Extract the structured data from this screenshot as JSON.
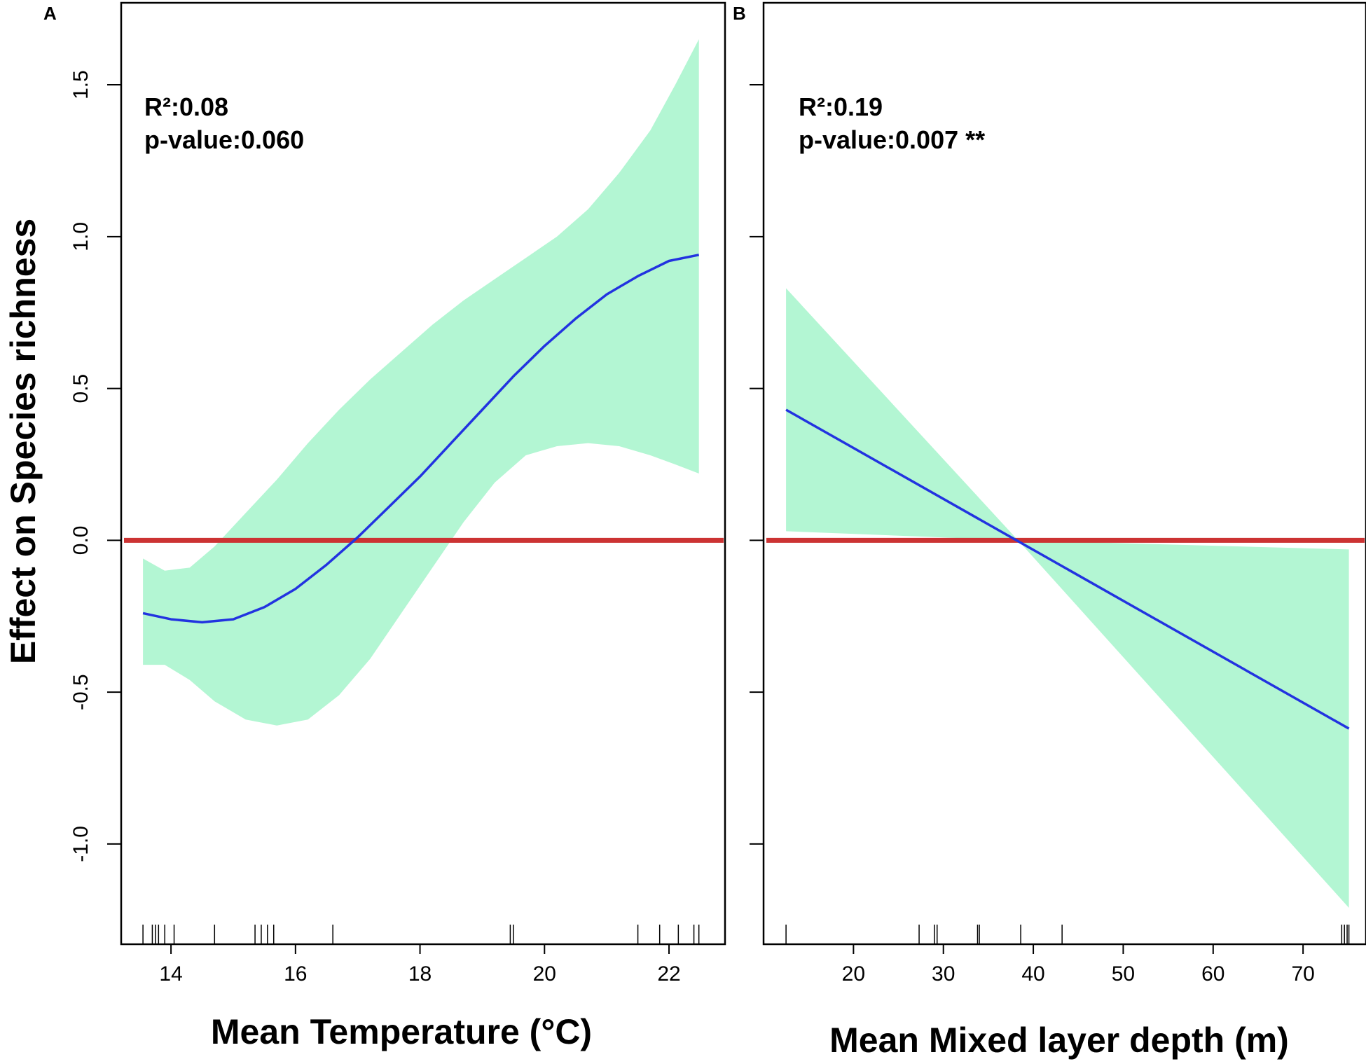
{
  "ylabel": "Effect on Species richness",
  "colors": {
    "band": "#b3f6d3",
    "curve": "#2233e0",
    "zero_line": "#cc3333",
    "axis": "#000000"
  },
  "chart_data": [
    {
      "type": "line",
      "panel": "A",
      "title": "",
      "xlabel": "Mean Temperature (°C)",
      "ylabel": "Effect on Species richness",
      "xlim": [
        13.2,
        22.9
      ],
      "ylim": [
        -1.33,
        1.77
      ],
      "xticks": [
        14,
        16,
        18,
        20,
        22
      ],
      "xtick_labels": [
        "14",
        "16",
        "18",
        "20",
        "22"
      ],
      "yticks": [
        -1.0,
        -0.5,
        0.0,
        0.5,
        1.0,
        1.5
      ],
      "ytick_labels": [
        "-1.0",
        "-0.5",
        "0.0",
        "0.5",
        "1.0",
        "1.5"
      ],
      "stats": {
        "r2": "R²:0.08",
        "pvalue": "p-value:0.060"
      },
      "reference_line_y": 0,
      "series": [
        {
          "name": "fit",
          "x": [
            13.55,
            14.0,
            14.5,
            15.0,
            15.5,
            16.0,
            16.5,
            17.0,
            17.5,
            18.0,
            18.5,
            19.0,
            19.5,
            20.0,
            20.5,
            21.0,
            21.5,
            22.0,
            22.48
          ],
          "y": [
            -0.24,
            -0.26,
            -0.27,
            -0.26,
            -0.22,
            -0.16,
            -0.08,
            0.01,
            0.11,
            0.21,
            0.32,
            0.43,
            0.54,
            0.64,
            0.73,
            0.81,
            0.87,
            0.92,
            0.94
          ]
        },
        {
          "name": "ci_upper",
          "x": [
            13.55,
            13.9,
            14.3,
            14.7,
            15.2,
            15.7,
            16.2,
            16.7,
            17.2,
            17.7,
            18.2,
            18.7,
            19.2,
            19.7,
            20.2,
            20.7,
            21.2,
            21.7,
            22.1,
            22.48
          ],
          "y": [
            -0.06,
            -0.1,
            -0.09,
            -0.02,
            0.09,
            0.2,
            0.32,
            0.43,
            0.53,
            0.62,
            0.71,
            0.79,
            0.86,
            0.93,
            1.0,
            1.09,
            1.21,
            1.35,
            1.5,
            1.65
          ]
        },
        {
          "name": "ci_lower",
          "x": [
            13.55,
            13.9,
            14.3,
            14.7,
            15.2,
            15.7,
            16.2,
            16.7,
            17.2,
            17.7,
            18.2,
            18.7,
            19.2,
            19.7,
            20.2,
            20.7,
            21.2,
            21.7,
            22.1,
            22.48
          ],
          "y": [
            -0.41,
            -0.41,
            -0.46,
            -0.53,
            -0.59,
            -0.61,
            -0.59,
            -0.51,
            -0.39,
            -0.24,
            -0.09,
            0.06,
            0.19,
            0.28,
            0.31,
            0.32,
            0.31,
            0.28,
            0.25,
            0.22
          ]
        }
      ],
      "rug": [
        13.55,
        13.7,
        13.75,
        13.8,
        13.9,
        14.05,
        14.7,
        15.35,
        15.45,
        15.55,
        15.65,
        16.6,
        19.45,
        19.5,
        21.5,
        21.85,
        22.15,
        22.4,
        22.48
      ]
    },
    {
      "type": "line",
      "panel": "B",
      "title": "",
      "xlabel": "Mean Mixed layer depth (m)",
      "ylabel": "",
      "xlim": [
        10,
        77
      ],
      "ylim": [
        -1.33,
        1.77
      ],
      "xticks": [
        20,
        30,
        40,
        50,
        60,
        70
      ],
      "xtick_labels": [
        "20",
        "30",
        "40",
        "50",
        "60",
        "70"
      ],
      "yticks": [
        -1.0,
        -0.5,
        0.0,
        0.5,
        1.0,
        1.5
      ],
      "ytick_labels": [],
      "stats": {
        "r2": "R²:0.19",
        "pvalue": "p-value:0.007 **"
      },
      "reference_line_y": 0,
      "series": [
        {
          "name": "fit",
          "x": [
            12.5,
            75.1
          ],
          "y": [
            0.43,
            -0.62
          ]
        },
        {
          "name": "ci_upper",
          "x": [
            12.5,
            38.3,
            75.1
          ],
          "y": [
            0.83,
            0.0,
            -0.03
          ]
        },
        {
          "name": "ci_lower",
          "x": [
            12.5,
            38.3,
            75.1
          ],
          "y": [
            0.03,
            0.0,
            -1.21
          ]
        }
      ],
      "rug": [
        12.5,
        27.3,
        29.0,
        29.3,
        33.8,
        34.0,
        38.6,
        43.2,
        74.3,
        74.6,
        74.9,
        75.1
      ]
    }
  ]
}
